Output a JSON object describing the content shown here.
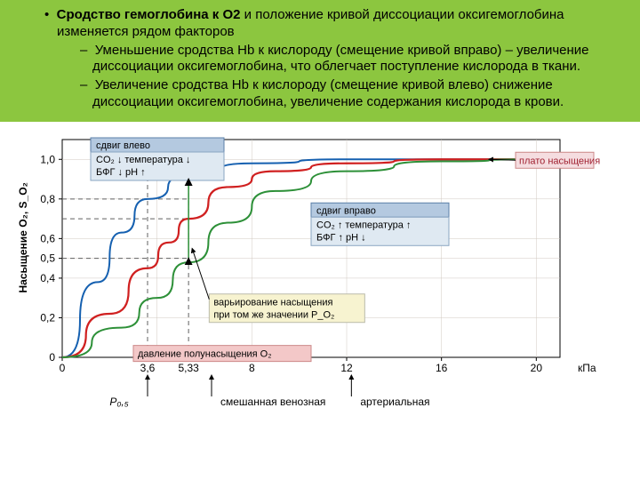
{
  "banner": {
    "bullet": "•",
    "title_bold": "Сродство гемоглобина к O2",
    "title_rest": " и положение кривой диссоциации оксигемоглобина изменяется рядом факторов",
    "sub1": "Уменьшение сродства Hb к кислороду (смещение кривой вправо) – увеличение диссоциации оксигемоглобина, что облегчает поступление кислорода в ткани.",
    "sub2": "Увеличение сродства Hb к кислороду (смещение кривой влево) снижение диссоциации оксигемоглобина, увеличение содержания кислорода в крови."
  },
  "chart": {
    "type": "line",
    "xlim": [
      0,
      21
    ],
    "ylim": [
      0,
      1.1
    ],
    "x_ticks": [
      0,
      3.6,
      5.33,
      8,
      12,
      16,
      20
    ],
    "x_tick_labels": [
      "0",
      "3,6",
      "5,33",
      "8",
      "12",
      "16",
      "20"
    ],
    "x_unit": "кПа",
    "y_ticks": [
      0,
      0.2,
      0.4,
      0.5,
      0.6,
      0.8,
      1.0
    ],
    "y_tick_labels": [
      "0",
      "0,2",
      "0,4",
      "0,5",
      "0,6",
      "0,8",
      "1,0"
    ],
    "y_axis_label": "Насыщение O₂, S_O₂",
    "background_color": "#ffffff",
    "grid_color": "#d0c8c0",
    "series": {
      "left": {
        "color": "#1560b0",
        "width": 2.0,
        "pts": [
          [
            0,
            0
          ],
          [
            1.5,
            0.38
          ],
          [
            2.5,
            0.63
          ],
          [
            3.6,
            0.8
          ],
          [
            5.33,
            0.92
          ],
          [
            8,
            0.98
          ],
          [
            12,
            1.0
          ],
          [
            16,
            1.0
          ],
          [
            20,
            1.0
          ]
        ]
      },
      "mid": {
        "color": "#d02020",
        "width": 2.2,
        "pts": [
          [
            0,
            0
          ],
          [
            2,
            0.22
          ],
          [
            3.6,
            0.45
          ],
          [
            4.5,
            0.58
          ],
          [
            5.33,
            0.7
          ],
          [
            7,
            0.86
          ],
          [
            9,
            0.94
          ],
          [
            12,
            0.98
          ],
          [
            16,
            1.0
          ],
          [
            20,
            1.0
          ]
        ]
      },
      "right": {
        "color": "#2d9038",
        "width": 2.0,
        "pts": [
          [
            0,
            0
          ],
          [
            2.5,
            0.15
          ],
          [
            4,
            0.3
          ],
          [
            5.33,
            0.48
          ],
          [
            7,
            0.68
          ],
          [
            9,
            0.84
          ],
          [
            12,
            0.94
          ],
          [
            16,
            0.99
          ],
          [
            20,
            1.0
          ]
        ]
      }
    },
    "dashes": {
      "color": "#606060",
      "h": [
        0.5,
        0.7,
        0.8
      ],
      "v": [
        3.6,
        5.33
      ]
    },
    "annotations": {
      "left_box": {
        "title": "сдвиг влево",
        "lines": [
          "CO₂ ↓  температура ↓",
          "БФГ ↓  pH ↑"
        ]
      },
      "right_box": {
        "title": "сдвиг вправо",
        "lines": [
          "CO₂ ↑  температура ↑",
          "БФГ ↑  pH ↓"
        ]
      },
      "plateau": "плато насыщения",
      "var_box": "варьирование насыщения\nпри том же значении P_O₂",
      "half_box": "давление полунасыщения O₂",
      "bottom": {
        "p05": "P₀,₅",
        "mixed": "смешанная венозная",
        "arterial": "артериальная"
      }
    }
  }
}
